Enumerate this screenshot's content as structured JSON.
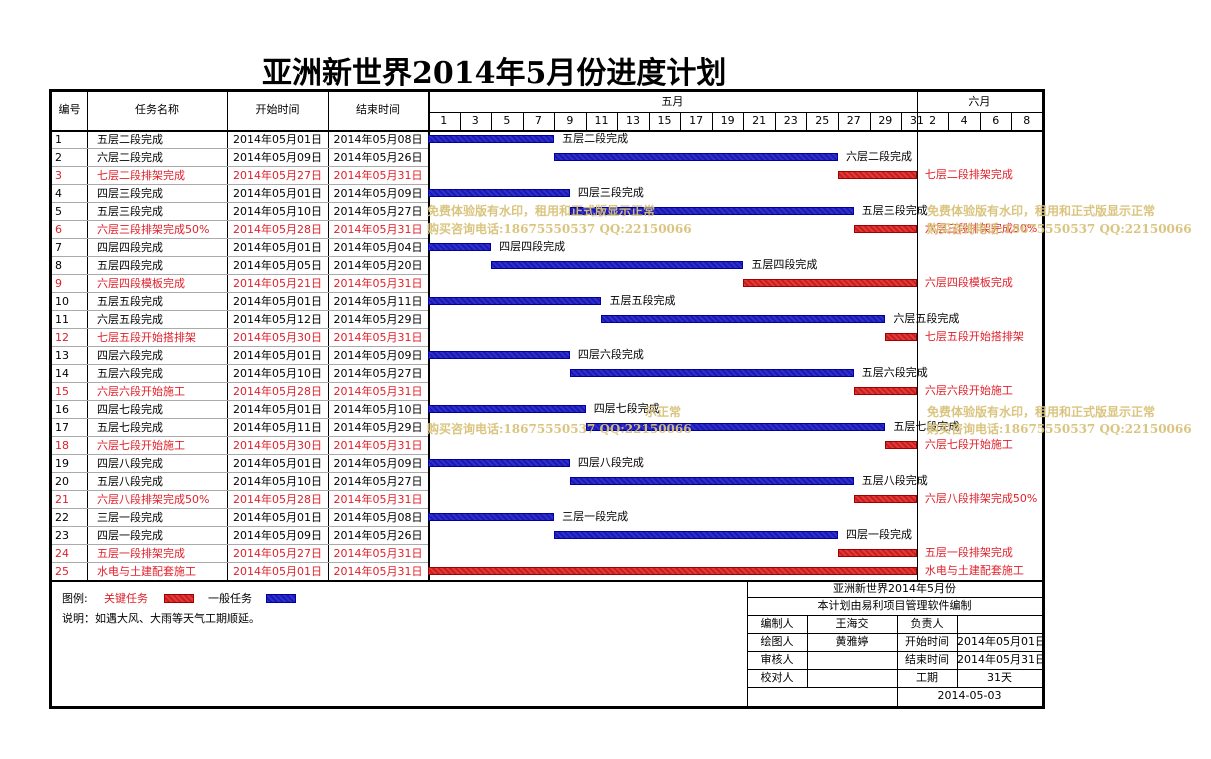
{
  "title": "亚洲新世界2014年5月份进度计划",
  "header": {
    "col_no": "编号",
    "col_name": "任务名称",
    "col_start": "开始时间",
    "col_end": "结束时间",
    "month_may": "五月",
    "month_june": "六月",
    "may_days": [
      "1",
      "3",
      "5",
      "7",
      "9",
      "11",
      "13",
      "15",
      "17",
      "19",
      "21",
      "23",
      "25",
      "27",
      "29",
      "31"
    ],
    "june_days": [
      "2",
      "4",
      "6",
      "8"
    ]
  },
  "tasks": [
    {
      "no": "1",
      "name": "五层二段完成",
      "start": "2014年05月01日",
      "end": "2014年05月08日",
      "s": 1,
      "e": 8,
      "critical": false,
      "label": "五层二段完成"
    },
    {
      "no": "2",
      "name": "六层二段完成",
      "start": "2014年05月09日",
      "end": "2014年05月26日",
      "s": 9,
      "e": 26,
      "critical": false,
      "label": "六层二段完成"
    },
    {
      "no": "3",
      "name": "七层二段排架完成",
      "start": "2014年05月27日",
      "end": "2014年05月31日",
      "s": 27,
      "e": 31,
      "critical": true,
      "label": "七层二段排架完成"
    },
    {
      "no": "4",
      "name": "四层三段完成",
      "start": "2014年05月01日",
      "end": "2014年05月09日",
      "s": 1,
      "e": 9,
      "critical": false,
      "label": "四层三段完成"
    },
    {
      "no": "5",
      "name": "五层三段完成",
      "start": "2014年05月10日",
      "end": "2014年05月27日",
      "s": 10,
      "e": 27,
      "critical": false,
      "label": "五层三段完成"
    },
    {
      "no": "6",
      "name": "六层三段排架完成50%",
      "start": "2014年05月28日",
      "end": "2014年05月31日",
      "s": 28,
      "e": 31,
      "critical": true,
      "label": "六层三段排架完成50%"
    },
    {
      "no": "7",
      "name": "四层四段完成",
      "start": "2014年05月01日",
      "end": "2014年05月04日",
      "s": 1,
      "e": 4,
      "critical": false,
      "label": "四层四段完成"
    },
    {
      "no": "8",
      "name": "五层四段完成",
      "start": "2014年05月05日",
      "end": "2014年05月20日",
      "s": 5,
      "e": 20,
      "critical": false,
      "label": "五层四段完成"
    },
    {
      "no": "9",
      "name": "六层四段模板完成",
      "start": "2014年05月21日",
      "end": "2014年05月31日",
      "s": 21,
      "e": 31,
      "critical": true,
      "label": "六层四段模板完成"
    },
    {
      "no": "10",
      "name": "五层五段完成",
      "start": "2014年05月01日",
      "end": "2014年05月11日",
      "s": 1,
      "e": 11,
      "critical": false,
      "label": "五层五段完成"
    },
    {
      "no": "11",
      "name": "六层五段完成",
      "start": "2014年05月12日",
      "end": "2014年05月29日",
      "s": 12,
      "e": 29,
      "critical": false,
      "label": "六层五段完成"
    },
    {
      "no": "12",
      "name": "七层五段开始搭排架",
      "start": "2014年05月30日",
      "end": "2014年05月31日",
      "s": 30,
      "e": 31,
      "critical": true,
      "label": "七层五段开始搭排架"
    },
    {
      "no": "13",
      "name": "四层六段完成",
      "start": "2014年05月01日",
      "end": "2014年05月09日",
      "s": 1,
      "e": 9,
      "critical": false,
      "label": "四层六段完成"
    },
    {
      "no": "14",
      "name": "五层六段完成",
      "start": "2014年05月10日",
      "end": "2014年05月27日",
      "s": 10,
      "e": 27,
      "critical": false,
      "label": "五层六段完成"
    },
    {
      "no": "15",
      "name": "六层六段开始施工",
      "start": "2014年05月28日",
      "end": "2014年05月31日",
      "s": 28,
      "e": 31,
      "critical": true,
      "label": "六层六段开始施工"
    },
    {
      "no": "16",
      "name": "四层七段完成",
      "start": "2014年05月01日",
      "end": "2014年05月10日",
      "s": 1,
      "e": 10,
      "critical": false,
      "label": "四层七段完成"
    },
    {
      "no": "17",
      "name": "五层七段完成",
      "start": "2014年05月11日",
      "end": "2014年05月29日",
      "s": 11,
      "e": 29,
      "critical": false,
      "label": "五层七段完成"
    },
    {
      "no": "18",
      "name": "六层七段开始施工",
      "start": "2014年05月30日",
      "end": "2014年05月31日",
      "s": 30,
      "e": 31,
      "critical": true,
      "label": "六层七段开始施工"
    },
    {
      "no": "19",
      "name": "四层八段完成",
      "start": "2014年05月01日",
      "end": "2014年05月09日",
      "s": 1,
      "e": 9,
      "critical": false,
      "label": "四层八段完成"
    },
    {
      "no": "20",
      "name": "五层八段完成",
      "start": "2014年05月10日",
      "end": "2014年05月27日",
      "s": 10,
      "e": 27,
      "critical": false,
      "label": "五层八段完成"
    },
    {
      "no": "21",
      "name": "六层八段排架完成50%",
      "start": "2014年05月28日",
      "end": "2014年05月31日",
      "s": 28,
      "e": 31,
      "critical": true,
      "label": "六层八段排架完成50%"
    },
    {
      "no": "22",
      "name": "三层一段完成",
      "start": "2014年05月01日",
      "end": "2014年05月08日",
      "s": 1,
      "e": 8,
      "critical": false,
      "label": "三层一段完成"
    },
    {
      "no": "23",
      "name": "四层一段完成",
      "start": "2014年05月09日",
      "end": "2014年05月26日",
      "s": 9,
      "e": 26,
      "critical": false,
      "label": "四层一段完成"
    },
    {
      "no": "24",
      "name": "五层一段排架完成",
      "start": "2014年05月27日",
      "end": "2014年05月31日",
      "s": 27,
      "e": 31,
      "critical": true,
      "label": "五层一段排架完成"
    },
    {
      "no": "25",
      "name": "水电与土建配套施工",
      "start": "2014年05月01日",
      "end": "2014年05月31日",
      "s": 1,
      "e": 31,
      "critical": true,
      "label": "水电与土建配套施工"
    }
  ],
  "legend": {
    "prefix": "图例:",
    "critical": "关键任务",
    "normal": "一般任务",
    "note": "说明：如遇大风、大雨等天气工期顺延。"
  },
  "info": {
    "project": "亚洲新世界2014年5月份",
    "software": "本计划由易利项目管理软件编制",
    "editor_label": "编制人",
    "editor": "王海交",
    "owner_label": "负责人",
    "owner": "",
    "drawer_label": "绘图人",
    "drawer": "黄雅婷",
    "start_label": "开始时间",
    "start": "2014年05月01日",
    "reviewer_label": "审核人",
    "reviewer": "",
    "end_label": "结束时间",
    "end": "2014年05月31日",
    "checker_label": "校对人",
    "checker": "",
    "duration_label": "工期",
    "duration": "31天",
    "date": "2014-05-03"
  },
  "watermark": {
    "line1": "免费体验版有水印，租用和正式版显示正常",
    "line2": "购买咨询电话:18675550537 QQ:22150066",
    "frag1": "示正常"
  },
  "colors": {
    "critical": "#e0202a",
    "normal": "#1a1ab0",
    "watermark": "#d9c27a"
  }
}
